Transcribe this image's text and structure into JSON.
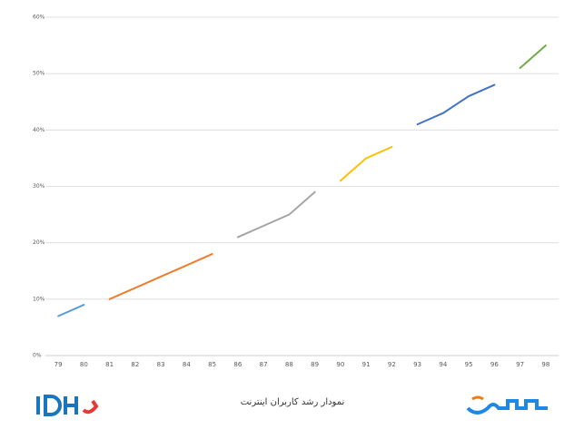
{
  "chart_data": {
    "type": "line",
    "title": "نمودار رشد کاربران اینترنت",
    "categories": [
      "79",
      "80",
      "81",
      "82",
      "83",
      "84",
      "85",
      "86",
      "87",
      "88",
      "89",
      "90",
      "91",
      "92",
      "93",
      "94",
      "95",
      "96",
      "97",
      "98"
    ],
    "series": [
      {
        "color": "#5b9bd5",
        "values": [
          7,
          9,
          null,
          null,
          null,
          null,
          null,
          null,
          null,
          null,
          null,
          null,
          null,
          null,
          null,
          null,
          null,
          null,
          null,
          null
        ]
      },
      {
        "color": "#ed7d31",
        "values": [
          null,
          null,
          10,
          12,
          14,
          16,
          18,
          null,
          null,
          null,
          null,
          null,
          null,
          null,
          null,
          null,
          null,
          null,
          null,
          null
        ]
      },
      {
        "color": "#a5a5a5",
        "values": [
          null,
          null,
          null,
          null,
          null,
          null,
          null,
          21,
          23,
          25,
          29,
          null,
          null,
          null,
          null,
          null,
          null,
          null,
          null,
          null
        ]
      },
      {
        "color": "#ffc000",
        "values": [
          null,
          null,
          null,
          null,
          null,
          null,
          null,
          null,
          null,
          null,
          null,
          31,
          35,
          37,
          null,
          null,
          null,
          null,
          null,
          null
        ]
      },
      {
        "color": "#4472c4",
        "values": [
          null,
          null,
          null,
          null,
          null,
          null,
          null,
          null,
          null,
          null,
          null,
          null,
          null,
          null,
          41,
          43,
          46,
          48,
          null,
          null
        ]
      },
      {
        "color": "#70ad47",
        "values": [
          null,
          null,
          null,
          null,
          null,
          null,
          null,
          null,
          null,
          null,
          null,
          null,
          null,
          null,
          null,
          null,
          null,
          null,
          51,
          55
        ]
      }
    ],
    "ylim": [
      0,
      60
    ],
    "yticks": [
      {
        "value": 0,
        "label": "0%"
      },
      {
        "value": 10,
        "label": "10%"
      },
      {
        "value": 20,
        "label": "20%"
      },
      {
        "value": 30,
        "label": "30%"
      },
      {
        "value": 40,
        "label": "40%"
      },
      {
        "value": 50,
        "label": "50%"
      },
      {
        "value": 60,
        "label": "60%"
      }
    ],
    "grid": true
  }
}
